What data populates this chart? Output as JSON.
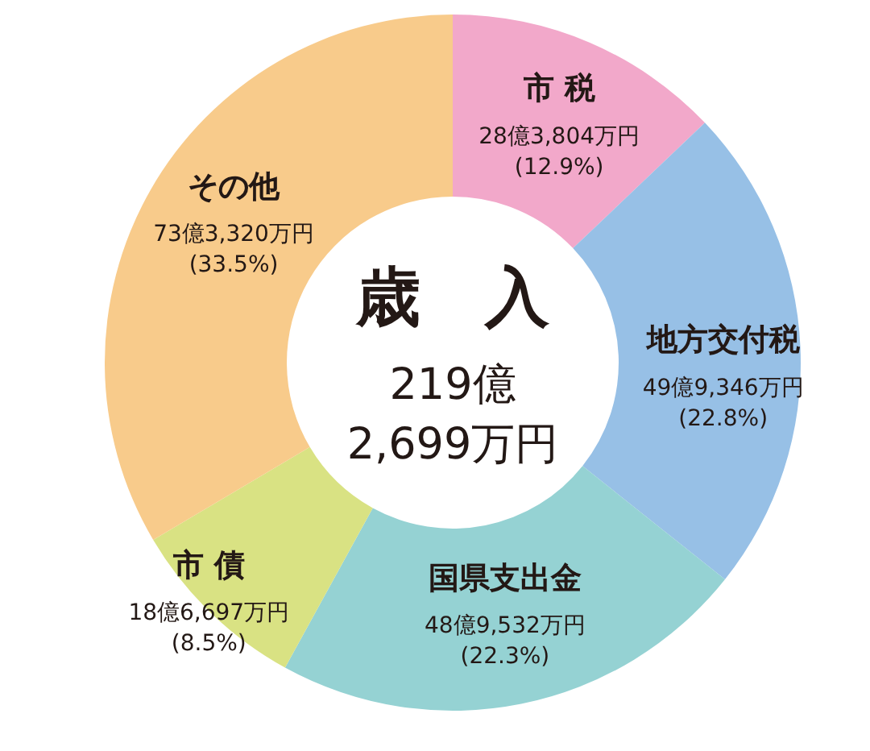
{
  "chart_data": {
    "type": "donut",
    "title": "歳　入",
    "annotations": [
      "219億\n2,699万円"
    ],
    "categories": [
      "市 税",
      "地方交付税",
      "国県支出金",
      "市 債",
      "その他"
    ],
    "values": [
      12.9,
      22.8,
      22.3,
      8.5,
      33.5
    ],
    "colors": [
      "#f2a8ca",
      "#97c0e6",
      "#95d2d3",
      "#d9e283",
      "#f8cb8b"
    ],
    "value_labels": [
      "28億3,804万円\n(12.9%)",
      "49億9,346万円\n(22.8%)",
      "48億9,532万円\n(22.3%)",
      "18億6,697万円\n(8.5%)",
      "73億3,320万円\n(33.5%)"
    ]
  }
}
